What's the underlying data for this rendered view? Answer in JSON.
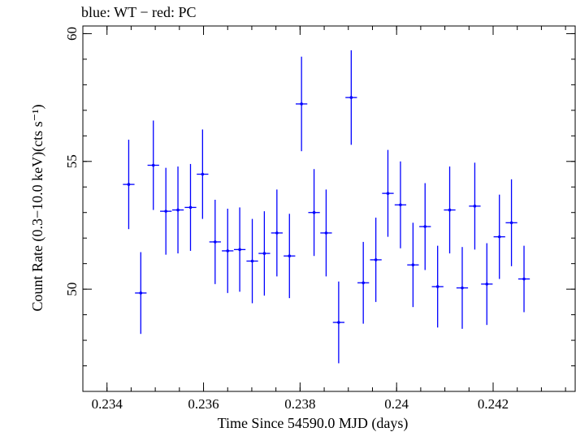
{
  "chart_data": {
    "type": "scatter",
    "title": "blue: WT − red: PC",
    "xlabel": "Time Since 54590.0 MJD (days)",
    "ylabel": "Count Rate (0.3−10.0 keV)(cts s⁻¹)",
    "xlim": [
      0.2335,
      0.2437
    ],
    "ylim": [
      46.0,
      60.3
    ],
    "x_ticks": [
      0.234,
      0.236,
      0.238,
      0.24,
      0.242
    ],
    "x_tick_labels": [
      "0.234",
      "0.236",
      "0.238",
      "0.24",
      "0.242"
    ],
    "y_ticks": [
      50,
      55,
      60
    ],
    "y_tick_labels": [
      "50",
      "55",
      "60"
    ],
    "grid": false,
    "series_color": "#0000ff",
    "points": [
      {
        "x": 0.23445,
        "y": 54.1,
        "xerr": 0.00012,
        "yerr": 1.75
      },
      {
        "x": 0.2347,
        "y": 49.85,
        "xerr": 0.00012,
        "yerr": 1.6
      },
      {
        "x": 0.23496,
        "y": 54.85,
        "xerr": 0.00012,
        "yerr": 1.75
      },
      {
        "x": 0.23522,
        "y": 53.05,
        "xerr": 0.00012,
        "yerr": 1.7
      },
      {
        "x": 0.23547,
        "y": 53.1,
        "xerr": 0.00012,
        "yerr": 1.7
      },
      {
        "x": 0.23573,
        "y": 53.2,
        "xerr": 0.00012,
        "yerr": 1.7
      },
      {
        "x": 0.23598,
        "y": 54.5,
        "xerr": 0.00012,
        "yerr": 1.75
      },
      {
        "x": 0.23624,
        "y": 51.85,
        "xerr": 0.00012,
        "yerr": 1.65
      },
      {
        "x": 0.2365,
        "y": 51.5,
        "xerr": 0.00012,
        "yerr": 1.65
      },
      {
        "x": 0.23675,
        "y": 51.55,
        "xerr": 0.00012,
        "yerr": 1.65
      },
      {
        "x": 0.23701,
        "y": 51.1,
        "xerr": 0.00012,
        "yerr": 1.65
      },
      {
        "x": 0.23726,
        "y": 51.4,
        "xerr": 0.00012,
        "yerr": 1.65
      },
      {
        "x": 0.23752,
        "y": 52.2,
        "xerr": 0.00012,
        "yerr": 1.7
      },
      {
        "x": 0.23778,
        "y": 51.3,
        "xerr": 0.00012,
        "yerr": 1.65
      },
      {
        "x": 0.23803,
        "y": 57.25,
        "xerr": 0.00012,
        "yerr": 1.85
      },
      {
        "x": 0.23829,
        "y": 53.0,
        "xerr": 0.00012,
        "yerr": 1.7
      },
      {
        "x": 0.23854,
        "y": 52.2,
        "xerr": 0.00012,
        "yerr": 1.7
      },
      {
        "x": 0.2388,
        "y": 48.7,
        "xerr": 0.00012,
        "yerr": 1.6
      },
      {
        "x": 0.23906,
        "y": 57.5,
        "xerr": 0.00012,
        "yerr": 1.85
      },
      {
        "x": 0.23931,
        "y": 50.25,
        "xerr": 0.00012,
        "yerr": 1.6
      },
      {
        "x": 0.23957,
        "y": 51.15,
        "xerr": 0.00012,
        "yerr": 1.65
      },
      {
        "x": 0.23982,
        "y": 53.75,
        "xerr": 0.00012,
        "yerr": 1.7
      },
      {
        "x": 0.24008,
        "y": 53.3,
        "xerr": 0.00012,
        "yerr": 1.7
      },
      {
        "x": 0.24034,
        "y": 50.95,
        "xerr": 0.00012,
        "yerr": 1.65
      },
      {
        "x": 0.24059,
        "y": 52.45,
        "xerr": 0.00012,
        "yerr": 1.7
      },
      {
        "x": 0.24085,
        "y": 50.1,
        "xerr": 0.00012,
        "yerr": 1.6
      },
      {
        "x": 0.2411,
        "y": 53.1,
        "xerr": 0.00012,
        "yerr": 1.7
      },
      {
        "x": 0.24136,
        "y": 50.05,
        "xerr": 0.00012,
        "yerr": 1.6
      },
      {
        "x": 0.24162,
        "y": 53.25,
        "xerr": 0.00012,
        "yerr": 1.7
      },
      {
        "x": 0.24187,
        "y": 50.2,
        "xerr": 0.00012,
        "yerr": 1.6
      },
      {
        "x": 0.24213,
        "y": 52.05,
        "xerr": 0.00012,
        "yerr": 1.65
      },
      {
        "x": 0.24238,
        "y": 52.6,
        "xerr": 0.00012,
        "yerr": 1.7
      },
      {
        "x": 0.24264,
        "y": 50.4,
        "xerr": 0.00012,
        "yerr": 1.3
      }
    ]
  }
}
